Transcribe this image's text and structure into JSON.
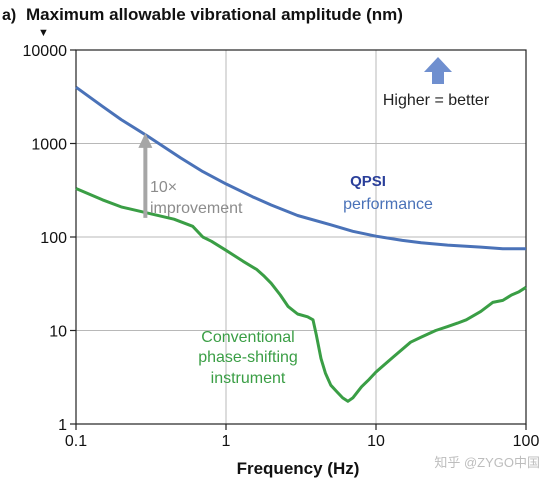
{
  "chart_data": {
    "type": "line",
    "panel_label": "a)",
    "title": "Maximum allowable vibrational amplitude (nm)",
    "title_marker": "▼",
    "xlabel": "Frequency (Hz)",
    "ylabel": "",
    "x_scale": "log",
    "y_scale": "log",
    "xlim": [
      0.1,
      100
    ],
    "ylim": [
      1,
      10000
    ],
    "x_ticks": [
      {
        "value": 0.1,
        "label": "0.1"
      },
      {
        "value": 1,
        "label": "1"
      },
      {
        "value": 10,
        "label": "10"
      },
      {
        "value": 100,
        "label": "100"
      }
    ],
    "y_ticks": [
      {
        "value": 1,
        "label": "1"
      },
      {
        "value": 10,
        "label": "10"
      },
      {
        "value": 100,
        "label": "100"
      },
      {
        "value": 1000,
        "label": "1000"
      },
      {
        "value": 10000,
        "label": "10000"
      }
    ],
    "grid": true,
    "series": [
      {
        "name": "QPSI performance",
        "color": "#4a72b8",
        "points": [
          [
            0.1,
            4000
          ],
          [
            0.15,
            2500
          ],
          [
            0.2,
            1800
          ],
          [
            0.3,
            1200
          ],
          [
            0.5,
            700
          ],
          [
            0.7,
            500
          ],
          [
            1.0,
            370
          ],
          [
            1.5,
            270
          ],
          [
            2.0,
            220
          ],
          [
            3.0,
            170
          ],
          [
            5.0,
            135
          ],
          [
            7.0,
            115
          ],
          [
            10.0,
            102
          ],
          [
            15.0,
            92
          ],
          [
            20.0,
            87
          ],
          [
            30.0,
            82
          ],
          [
            50.0,
            78
          ],
          [
            70.0,
            75
          ],
          [
            100.0,
            75
          ]
        ]
      },
      {
        "name": "Conventional phase-shifting instrument",
        "color": "#3a9e45",
        "points": [
          [
            0.1,
            330
          ],
          [
            0.15,
            250
          ],
          [
            0.2,
            210
          ],
          [
            0.3,
            180
          ],
          [
            0.45,
            155
          ],
          [
            0.6,
            130
          ],
          [
            0.7,
            100
          ],
          [
            0.8,
            90
          ],
          [
            1.0,
            72
          ],
          [
            1.3,
            55
          ],
          [
            1.6,
            45
          ],
          [
            1.8,
            38
          ],
          [
            2.0,
            32
          ],
          [
            2.3,
            24
          ],
          [
            2.6,
            18
          ],
          [
            3.0,
            15
          ],
          [
            3.5,
            14
          ],
          [
            3.8,
            13
          ],
          [
            4.0,
            9
          ],
          [
            4.3,
            5
          ],
          [
            4.6,
            3.5
          ],
          [
            5.0,
            2.6
          ],
          [
            5.5,
            2.2
          ],
          [
            6.0,
            1.9
          ],
          [
            6.5,
            1.75
          ],
          [
            7.0,
            1.9
          ],
          [
            8.0,
            2.5
          ],
          [
            9.0,
            3.0
          ],
          [
            10.0,
            3.6
          ],
          [
            13.0,
            5.2
          ],
          [
            17.0,
            7.5
          ],
          [
            20.0,
            8.5
          ],
          [
            25.0,
            10
          ],
          [
            30.0,
            11
          ],
          [
            35.0,
            12
          ],
          [
            40.0,
            13
          ],
          [
            50.0,
            16
          ],
          [
            60.0,
            20
          ],
          [
            70.0,
            21
          ],
          [
            80.0,
            24
          ],
          [
            90.0,
            26
          ],
          [
            100.0,
            29
          ]
        ]
      }
    ],
    "annotations": {
      "improvement_line1": "10×",
      "improvement_line2": "improvement",
      "improvement_arrow": {
        "x": 0.29,
        "y_from": 160,
        "y_to": 1300,
        "color": "#a6a6a6"
      },
      "qpsi_line1": "QPSI",
      "qpsi_line2": "performance",
      "conv_line1": "Conventional",
      "conv_line2": "phase-shifting",
      "conv_line3": "instrument",
      "higher_better": "Higher = better",
      "higher_arrow_color": "#6f8fcf"
    }
  },
  "watermark": "知乎 @ZYGO中国"
}
